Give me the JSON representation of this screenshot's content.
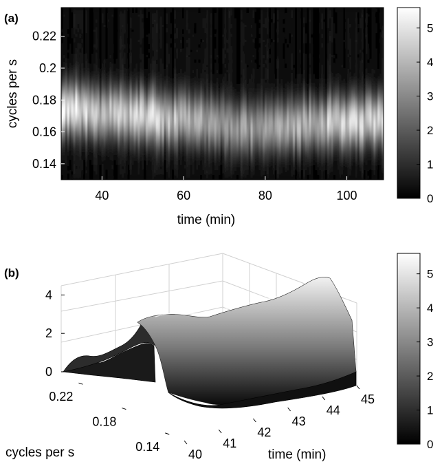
{
  "chart_data": [
    {
      "panel_label": "(a)",
      "type": "heatmap",
      "title": "",
      "xlabel": "time (min)",
      "ylabel": "cycles per s",
      "xlim": [
        30,
        109
      ],
      "ylim": [
        0.13,
        0.238
      ],
      "x_ticks": [
        "40",
        "60",
        "80",
        "100"
      ],
      "y_ticks": [
        "0.14",
        "0.16",
        "0.18",
        "0.2",
        "0.22"
      ],
      "colormap": "gray",
      "peak_band": {
        "x": [
          30,
          40,
          50,
          60,
          70,
          80,
          90,
          100,
          109
        ],
        "center_y": [
          0.175,
          0.172,
          0.17,
          0.168,
          0.165,
          0.163,
          0.165,
          0.167,
          0.168
        ],
        "peak_value": [
          5.2,
          4.3,
          4.8,
          4.0,
          3.2,
          3.6,
          3.9,
          4.6,
          5.0
        ]
      },
      "colorbar": {
        "ticks": [
          "0",
          "1",
          "2",
          "3",
          "4",
          "5"
        ],
        "range": [
          0,
          5.6
        ]
      }
    },
    {
      "panel_label": "(b)",
      "type": "surface",
      "title": "",
      "xlabel": "time (min)",
      "ylabel": "cycles per s",
      "zlabel": "",
      "xlim": [
        40,
        45
      ],
      "ylim": [
        0.13,
        0.24
      ],
      "zlim": [
        0,
        5.6
      ],
      "x_ticks": [
        "40",
        "41",
        "42",
        "43",
        "44",
        "45"
      ],
      "y_ticks": [
        "0.22",
        "0.18",
        "0.14"
      ],
      "z_ticks": [
        "0",
        "2",
        "4"
      ],
      "ridge": {
        "x": [
          40,
          41,
          42,
          43,
          44,
          45
        ],
        "center_y": [
          0.165,
          0.17,
          0.172,
          0.17,
          0.168,
          0.168
        ],
        "peak_value": [
          4.6,
          4.9,
          4.7,
          4.9,
          5.2,
          5.0
        ]
      },
      "colorbar": {
        "ticks": [
          "0",
          "1",
          "2",
          "3",
          "4",
          "5"
        ],
        "range": [
          0,
          5.6
        ]
      }
    }
  ]
}
